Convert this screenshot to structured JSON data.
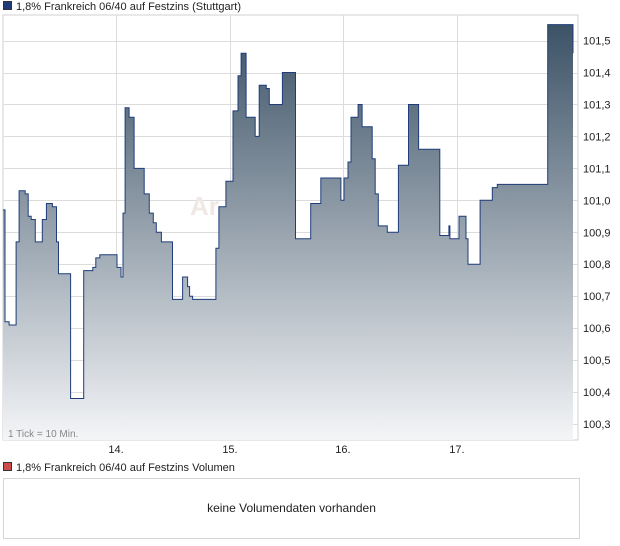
{
  "legend": {
    "price_label": "1,8% Frankreich 06/40 auf Festzins (Stuttgart)",
    "volume_label": "1,8% Frankreich 06/40 auf Festzins Volumen"
  },
  "colors": {
    "price_swatch": "#1f3c78",
    "volume_swatch": "#cc4b4b",
    "line": "#1f3d7a",
    "fill_top": "#3c5266",
    "fill_bottom": "#f4f5f7",
    "grid": "#dcdcdc",
    "watermark": "#f0e8e4"
  },
  "volume": {
    "message": "keine Volumendaten vorhanden"
  },
  "chart_data": {
    "type": "area",
    "tick_note": "1 Tick = 10 Min.",
    "watermark": "Ar",
    "x_tick_labels": [
      "14.",
      "15.",
      "16.",
      "17."
    ],
    "x_ticks_at_index": [
      112,
      225,
      337,
      450
    ],
    "ylim": [
      100.25,
      101.58
    ],
    "y_ticks": [
      100.3,
      100.4,
      100.5,
      100.6,
      100.7,
      100.8,
      100.9,
      101.0,
      101.1,
      101.2,
      101.3,
      101.4,
      101.5
    ],
    "y_tick_labels": [
      "100,3",
      "100,4",
      "100,5",
      "100,6",
      "100,7",
      "100,8",
      "100,9",
      "101,0",
      "101,1",
      "101,2",
      "101,3",
      "101,4",
      "101,5"
    ],
    "series": [
      {
        "steps": [
          [
            0,
            100.97
          ],
          [
            2,
            100.62
          ],
          [
            6,
            100.61
          ],
          [
            9,
            100.61
          ],
          [
            13,
            100.87
          ],
          [
            16,
            101.03
          ],
          [
            22,
            101.02
          ],
          [
            25,
            100.95
          ],
          [
            28,
            100.94
          ],
          [
            32,
            100.87
          ],
          [
            39,
            100.94
          ],
          [
            43,
            100.99
          ],
          [
            49,
            100.98
          ],
          [
            53,
            100.87
          ],
          [
            55,
            100.77
          ],
          [
            63,
            100.77
          ],
          [
            67,
            100.38
          ],
          [
            74,
            100.38
          ],
          [
            80,
            100.78
          ],
          [
            89,
            100.79
          ],
          [
            92,
            100.82
          ],
          [
            96,
            100.83
          ],
          [
            107,
            100.83
          ],
          [
            113,
            100.79
          ],
          [
            117,
            100.76
          ],
          [
            119,
            100.96
          ],
          [
            121,
            101.29
          ],
          [
            125,
            101.26
          ],
          [
            130,
            101.1
          ],
          [
            136,
            101.1
          ],
          [
            140,
            101.02
          ],
          [
            145,
            100.96
          ],
          [
            149,
            100.93
          ],
          [
            152,
            100.9
          ],
          [
            157,
            100.87
          ],
          [
            162,
            100.87
          ],
          [
            168,
            100.69
          ],
          [
            175,
            100.69
          ],
          [
            178,
            100.76
          ],
          [
            183,
            100.73
          ],
          [
            185,
            100.7
          ],
          [
            188,
            100.69
          ],
          [
            205,
            100.69
          ],
          [
            211,
            100.85
          ],
          [
            214,
            100.98
          ],
          [
            221,
            101.06
          ],
          [
            225,
            101.06
          ],
          [
            228,
            101.28
          ],
          [
            233,
            101.39
          ],
          [
            236,
            101.46
          ],
          [
            241,
            101.26
          ],
          [
            246,
            101.26
          ],
          [
            250,
            101.2
          ],
          [
            254,
            101.36
          ],
          [
            261,
            101.35
          ],
          [
            264,
            101.3
          ],
          [
            270,
            101.3
          ],
          [
            277,
            101.4
          ],
          [
            284,
            101.4
          ],
          [
            290,
            100.88
          ],
          [
            298,
            100.88
          ],
          [
            301,
            100.88
          ],
          [
            305,
            100.99
          ],
          [
            311,
            100.99
          ],
          [
            315,
            101.07
          ],
          [
            321,
            101.07
          ],
          [
            331,
            101.07
          ],
          [
            335,
            101.0
          ],
          [
            338,
            101.07
          ],
          [
            342,
            101.12
          ],
          [
            345,
            101.26
          ],
          [
            352,
            101.3
          ],
          [
            356,
            101.23
          ],
          [
            363,
            101.23
          ],
          [
            366,
            101.13
          ],
          [
            369,
            101.02
          ],
          [
            372,
            100.92
          ],
          [
            378,
            100.92
          ],
          [
            381,
            100.9
          ],
          [
            388,
            100.9
          ],
          [
            392,
            101.11
          ],
          [
            398,
            101.11
          ],
          [
            402,
            101.3
          ],
          [
            408,
            101.3
          ],
          [
            412,
            101.16
          ],
          [
            417,
            101.16
          ],
          [
            427,
            101.16
          ],
          [
            433,
            100.89
          ],
          [
            439,
            100.89
          ],
          [
            442,
            100.92
          ],
          [
            443,
            100.88
          ],
          [
            448,
            100.88
          ],
          [
            452,
            100.95
          ],
          [
            456,
            100.95
          ],
          [
            459,
            100.88
          ],
          [
            461,
            100.8
          ],
          [
            469,
            100.8
          ],
          [
            473,
            101.0
          ],
          [
            478,
            101.0
          ],
          [
            483,
            101.0
          ],
          [
            485,
            101.04
          ],
          [
            490,
            101.05
          ],
          [
            500,
            101.05
          ],
          [
            503,
            101.05
          ],
          [
            526,
            101.05
          ],
          [
            540,
            101.55
          ],
          [
            560,
            101.55
          ],
          [
            565,
            101.46
          ]
        ]
      }
    ]
  }
}
